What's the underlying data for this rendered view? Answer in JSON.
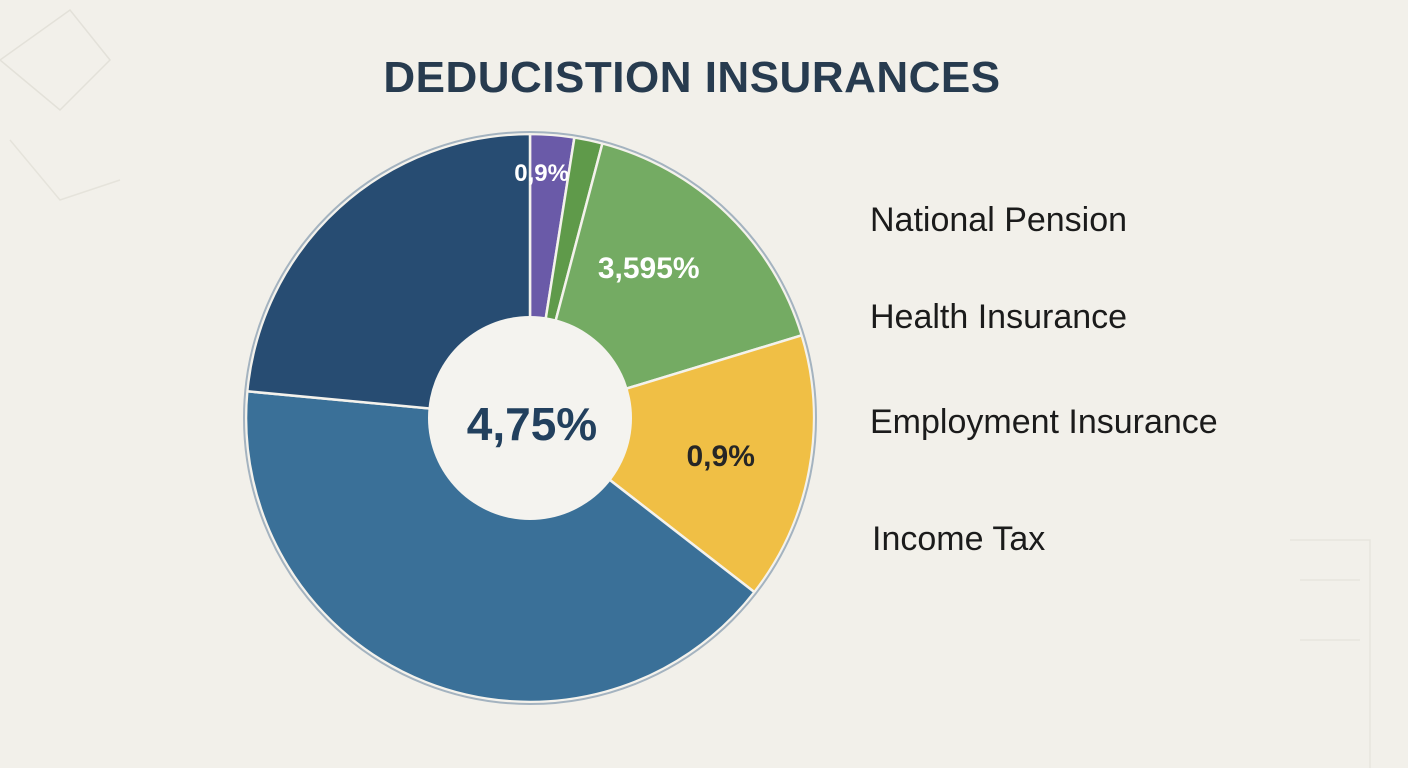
{
  "chart_data": {
    "type": "pie",
    "title": "DEDUCISTION INSURANCES",
    "center_label": "4,75%",
    "slices": [
      {
        "label": "0,9%",
        "value": 2.5,
        "color": "#6a5aa8",
        "show_label": true
      },
      {
        "label": "",
        "value": 1.6,
        "color": "#5f9a4a",
        "show_label": false
      },
      {
        "label": "3,595%",
        "value": 16.2,
        "color": "#74ab63",
        "show_label": true
      },
      {
        "label": "0,9%",
        "value": 15.2,
        "color": "#f0bf45",
        "show_label": true
      },
      {
        "label": "",
        "value": 41.0,
        "color": "#3a7098",
        "show_label": false
      },
      {
        "label": "",
        "value": 23.5,
        "color": "#274c72",
        "show_label": false
      }
    ],
    "label_colors": [
      "#ffffff",
      "#ffffff",
      "#ffffff",
      "#262626",
      "#ffffff",
      "#ffffff"
    ],
    "legend": [
      "National Pension",
      "Health Insurance",
      "Employment Insurance",
      "Income Tax"
    ],
    "legend_placement": "right"
  },
  "colors": {
    "background": "#f2f0ea",
    "title": "#273b4f",
    "center_text": "#22405e",
    "legend_text": "#1b1b1b"
  }
}
